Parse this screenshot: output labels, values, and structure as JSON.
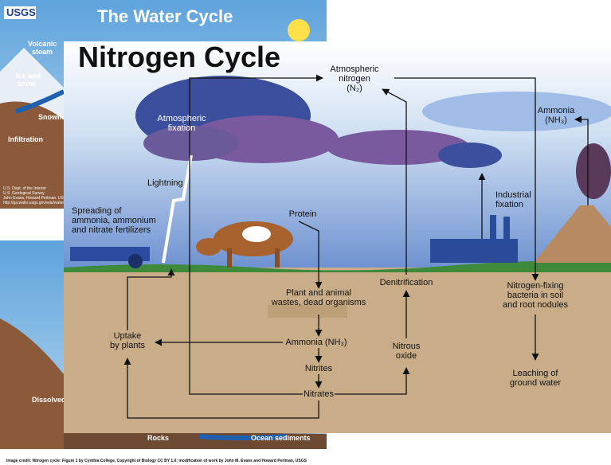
{
  "water_cycle": {
    "logo": "USGS",
    "title": "The Water Cycle",
    "labels": [
      [
        "Volcanic",
        "steam"
      ],
      [
        "Ice and",
        "snow"
      ],
      [
        "Snowm"
      ],
      [
        "Infiltration"
      ],
      [
        "Dissolved in"
      ],
      [
        "Rocks"
      ],
      [
        "Ocean sediments"
      ]
    ],
    "credits": [
      "U.S. Dept. of the Interior",
      "U.S. Geological Survey",
      "John Evans, Howard Perlman, USGS",
      "http://ga.water.usgs.gov/edu/watercycle.html"
    ]
  },
  "nitrogen_cycle": {
    "title": "Nitrogen Cycle",
    "labels": {
      "atmospheric_nitrogen": [
        "Atmospheric",
        "nitrogen",
        "(N₂)"
      ],
      "atmospheric_fixation": [
        "Atmospheric",
        "fixation"
      ],
      "ammonia_air": [
        "Ammonia",
        "(NH₃)"
      ],
      "lightning": [
        "Lightning"
      ],
      "industrial_fixation": [
        "Industrial",
        "fixation"
      ],
      "fertilizers": [
        "Spreading of",
        "ammonia, ammonium",
        "and nitrate fertilizers"
      ],
      "protein": [
        "Protein"
      ],
      "denitrification": [
        "Denitrification"
      ],
      "nitrogen_fixing": [
        "Nitrogen-fixing",
        "bacteria in soil",
        "and root nodules"
      ],
      "wastes": [
        "Plant and animal",
        "wastes, dead organisms"
      ],
      "uptake": [
        "Uptake",
        "by plants"
      ],
      "ammonia_soil": [
        "Ammonia (NH₃)"
      ],
      "nitrous_oxide": [
        "Nitrous",
        "oxide"
      ],
      "nitrites": [
        "Nitrites"
      ],
      "leaching": [
        "Leaching of",
        "ground water"
      ],
      "nitrates": [
        "Nitrates"
      ]
    }
  },
  "credit": "Image credit: Nitrogen cycle: Figure 1 by Cynthia College, Copyright of Biology CC BY 1.0; modification of work by John M. Evans and Howard Perlman, USGS"
}
